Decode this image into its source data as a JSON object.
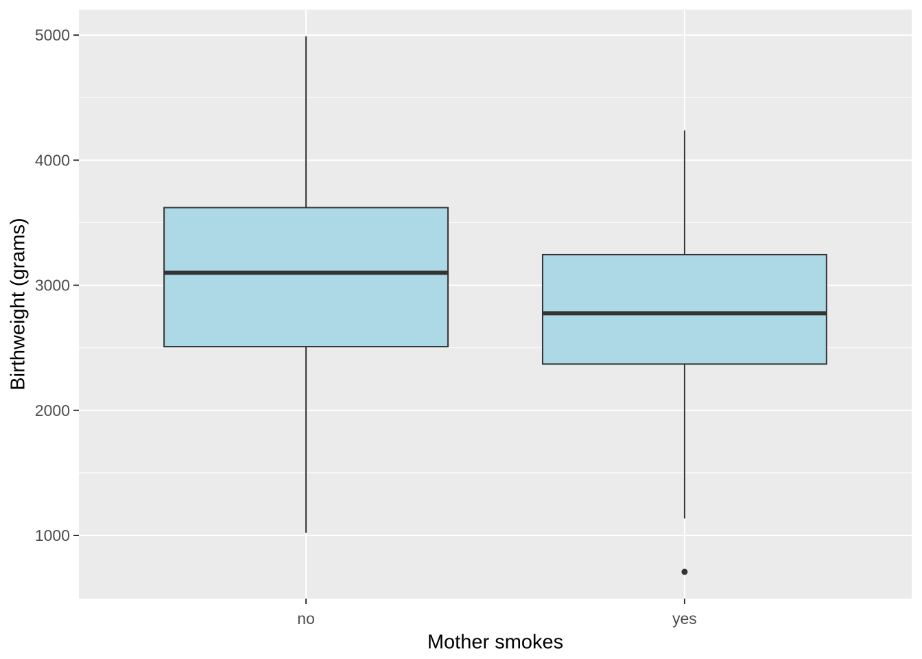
{
  "chart_data": {
    "type": "boxplot",
    "title": "",
    "xlabel": "Mother smokes",
    "ylabel": "Birthweight (grams)",
    "categories": [
      "no",
      "yes"
    ],
    "boxes": [
      {
        "category": "no",
        "whisker_low": 1021,
        "q1": 2509,
        "median": 3100,
        "q3": 3621,
        "whisker_high": 4990,
        "outliers": []
      },
      {
        "category": "yes",
        "whisker_low": 1135,
        "q1": 2370,
        "median": 2776,
        "q3": 3245,
        "whisker_high": 4238,
        "outliers": [
          709
        ]
      }
    ],
    "y_axis": {
      "ticks": [
        1000,
        2000,
        3000,
        4000,
        5000
      ],
      "minor_gridlines": [
        1500,
        2500,
        3500,
        4500
      ],
      "domain": [
        495,
        5204
      ]
    },
    "layout_hints": {
      "grid": "major white horizontal and vertical, minor white horizontal",
      "legend": "none",
      "box_width_fraction": 0.75
    },
    "style": {
      "panel_bg": "#EBEBEB",
      "grid_color": "#FFFFFF",
      "box_fill": "#ADD8E6",
      "box_stroke": "#333333",
      "tick_mark_color": "#333333",
      "tick_label_color": "#4D4D4D",
      "axis_title_color": "#000000"
    }
  }
}
